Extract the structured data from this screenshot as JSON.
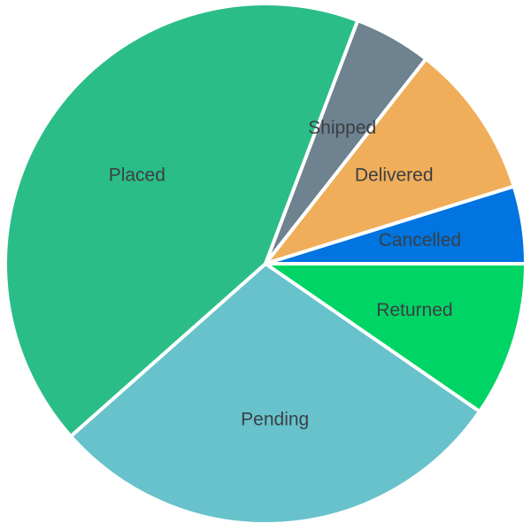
{
  "chart_data": {
    "type": "pie",
    "title": "",
    "start_angle_deg": 90,
    "direction": "clockwise",
    "legend": "none",
    "slices": [
      {
        "label": "Returned",
        "value": 10,
        "color": "#00d464"
      },
      {
        "label": "Pending",
        "value": 30,
        "color": "#67c2cb"
      },
      {
        "label": "Placed",
        "value": 44,
        "color": "#2bbd87"
      },
      {
        "label": "Shipped",
        "value": 5,
        "color": "#6e8290"
      },
      {
        "label": "Delivered",
        "value": 10,
        "color": "#f0ae5a"
      },
      {
        "label": "Cancelled",
        "value": 5,
        "color": "#0074e0"
      }
    ]
  }
}
